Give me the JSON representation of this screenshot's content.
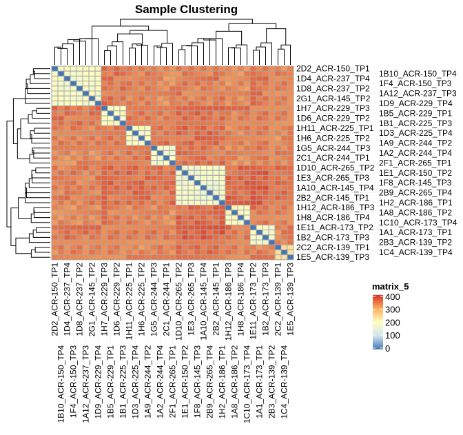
{
  "chart_data": {
    "type": "heatmap",
    "title": "Sample Clustering",
    "legend": {
      "title": "matrix_5",
      "ticks": [
        400,
        300,
        200,
        100,
        0
      ],
      "range": [
        0,
        400
      ],
      "placement": "right"
    },
    "color_scale": [
      {
        "value": 0,
        "color": "#4575B4"
      },
      {
        "value": 100,
        "color": "#CFE6F0"
      },
      {
        "value": 200,
        "color": "#FFFFBF"
      },
      {
        "value": 300,
        "color": "#FDAE61"
      },
      {
        "value": 400,
        "color": "#D73027"
      }
    ],
    "cell_border_color": "#A6A6A6",
    "labels": [
      "2D2_ACR-150_TP1",
      "1B10_ACR-150_TP4",
      "1D4_ACR-237_TP4",
      "1F4_ACR-150_TP3",
      "1D8_ACR-237_TP2",
      "1A12_ACR-237_TP3",
      "2G1_ACR-145_TP2",
      "1D9_ACR-229_TP4",
      "1H7_ACR-229_TP3",
      "1B5_ACR-229_TP1",
      "1D6_ACR-229_TP2",
      "1B1_ACR-225_TP3",
      "1H11_ACR-225_TP1",
      "1D3_ACR-225_TP4",
      "1H6_ACR-225_TP2",
      "1A9_ACR-244_TP2",
      "1G5_ACR-244_TP3",
      "1A2_ACR-244_TP4",
      "2C1_ACR-244_TP1",
      "2F1_ACR-265_TP1",
      "1D10_ACR-265_TP2",
      "1E1_ACR-150_TP2",
      "1E3_ACR-265_TP3",
      "1F8_ACR-145_TP3",
      "1A10_ACR-145_TP4",
      "2B9_ACR-265_TP4",
      "2B2_ACR-145_TP1",
      "1H2_ACR-186_TP1",
      "1H12_ACR-186_TP3",
      "1A8_ACR-186_TP2",
      "1H8_ACR-186_TP4",
      "1C10_ACR-173_TP4",
      "1E11_ACR-173_TP2",
      "1A1_ACR-173_TP1",
      "1B2_ACR-173_TP3",
      "2B3_ACR-139_TP2",
      "2C2_ACR-139_TP1",
      "1C4_ACR-139_TP4",
      "1E5_ACR-139_TP3"
    ],
    "cluster_sizes": [
      8,
      4,
      4,
      4,
      8,
      4,
      4,
      3
    ],
    "diagonal_value": 0,
    "block_mean_values": [
      [
        185,
        345,
        335,
        330,
        340,
        330,
        345,
        335
      ],
      [
        345,
        195,
        340,
        335,
        350,
        340,
        345,
        340
      ],
      [
        335,
        340,
        190,
        345,
        350,
        335,
        340,
        330
      ],
      [
        330,
        335,
        345,
        185,
        345,
        330,
        340,
        335
      ],
      [
        340,
        350,
        350,
        345,
        175,
        355,
        360,
        350
      ],
      [
        330,
        340,
        335,
        330,
        355,
        200,
        345,
        340
      ],
      [
        345,
        345,
        340,
        340,
        360,
        345,
        190,
        335
      ],
      [
        335,
        340,
        330,
        335,
        350,
        340,
        335,
        225
      ]
    ],
    "dendrogram": {
      "h": 100,
      "c": [
        {
          "h": 84,
          "c": [
            0,
            {
              "h": 74,
              "c": [
                {
                  "h": 66,
                  "c": [
                    1,
                    2
                  ]
                },
                3
              ]
            }
          ]
        },
        {
          "h": 90,
          "c": [
            {
              "h": 72,
              "c": [
                4,
                5
              ]
            },
            {
              "h": 78,
              "c": [
                6,
                7
              ]
            }
          ]
        }
      ]
    }
  }
}
